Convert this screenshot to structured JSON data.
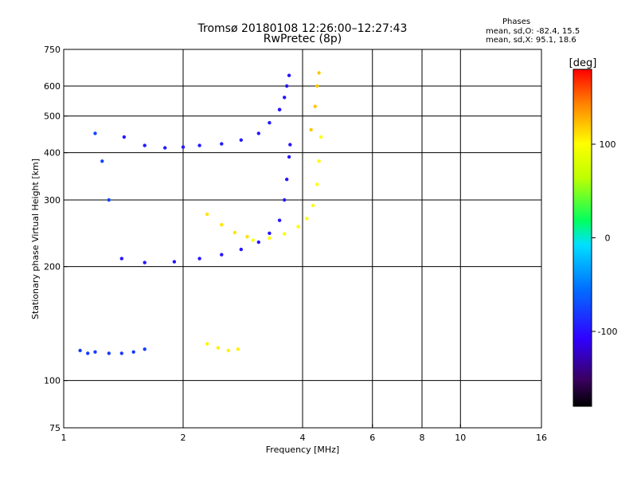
{
  "chart_data": {
    "type": "scatter",
    "title": "Tromsø 20180108 12:26:00–12:27:43",
    "subtitle": "RwPretec (8p)",
    "xlabel": "Frequency [MHz]",
    "ylabel": "Stationary phase Virtual Height [km]",
    "x_scale": "log",
    "y_scale": "log",
    "xlim": [
      1,
      16
    ],
    "ylim": [
      75,
      750
    ],
    "x_ticks": [
      1,
      2,
      4,
      6,
      8,
      10,
      16
    ],
    "x_tick_labels": [
      "1",
      "2",
      "4",
      "6",
      "8",
      "10",
      "16"
    ],
    "x_grid": [
      2,
      4,
      6,
      8,
      10
    ],
    "y_ticks": [
      75,
      100,
      200,
      300,
      400,
      500,
      600,
      750
    ],
    "y_tick_labels": [
      "75",
      "100",
      "200",
      "300",
      "400",
      "500",
      "600",
      "750"
    ],
    "y_grid": [
      100,
      200,
      300,
      400,
      500,
      600
    ],
    "grid": true,
    "colorbar": {
      "label": "[deg]",
      "range": [
        -180,
        180
      ],
      "ticks": [
        100,
        0,
        -100
      ],
      "tick_labels": [
        "100",
        "0",
        "-100"
      ]
    },
    "stats": {
      "heading": "Phases",
      "o_mode": "mean, sd,O: -82.4, 15.5",
      "x_mode": "mean, sd,X:  95.1, 18.6"
    },
    "traces": [
      {
        "mode": "O",
        "phase_deg": -95,
        "x": [
          1.42,
          1.6,
          1.8,
          2.0,
          2.2,
          2.5,
          2.8,
          3.1,
          3.3,
          3.5
        ],
        "y": [
          440,
          418,
          412,
          414,
          418,
          422,
          432,
          450,
          480,
          520
        ]
      },
      {
        "mode": "O",
        "phase_deg": -100,
        "x": [
          3.5,
          3.6,
          3.65,
          3.7
        ],
        "y": [
          520,
          560,
          600,
          640
        ]
      },
      {
        "mode": "O",
        "phase_deg": -98,
        "x": [
          1.4,
          1.6,
          1.9,
          2.2,
          2.5,
          2.8,
          3.1,
          3.3,
          3.5,
          3.6,
          3.65,
          3.7,
          3.72
        ],
        "y": [
          210,
          205,
          206,
          210,
          215,
          222,
          232,
          245,
          265,
          300,
          340,
          390,
          420
        ]
      },
      {
        "mode": "O",
        "phase_deg": -80,
        "x": [
          1.1,
          1.15,
          1.2,
          1.3,
          1.4,
          1.5,
          1.6
        ],
        "y": [
          120,
          118,
          119,
          118,
          118,
          119,
          121
        ]
      },
      {
        "mode": "O",
        "phase_deg": -75,
        "x": [
          1.2,
          1.25,
          1.3
        ],
        "y": [
          450,
          380,
          300
        ]
      },
      {
        "mode": "X",
        "phase_deg": 100,
        "x": [
          3.0,
          3.3,
          3.6,
          3.9,
          4.1,
          4.25,
          4.35,
          4.4,
          4.45
        ],
        "y": [
          235,
          238,
          244,
          255,
          268,
          290,
          330,
          380,
          440
        ]
      },
      {
        "mode": "X",
        "phase_deg": 120,
        "x": [
          4.2,
          4.3,
          4.35,
          4.4
        ],
        "y": [
          460,
          530,
          600,
          650
        ]
      },
      {
        "mode": "X",
        "phase_deg": 110,
        "x": [
          2.3,
          2.5,
          2.7,
          2.9
        ],
        "y": [
          275,
          258,
          246,
          240
        ]
      },
      {
        "mode": "X",
        "phase_deg": 105,
        "x": [
          2.3,
          2.45,
          2.6,
          2.75
        ],
        "y": [
          125,
          122,
          120,
          121
        ]
      }
    ]
  }
}
